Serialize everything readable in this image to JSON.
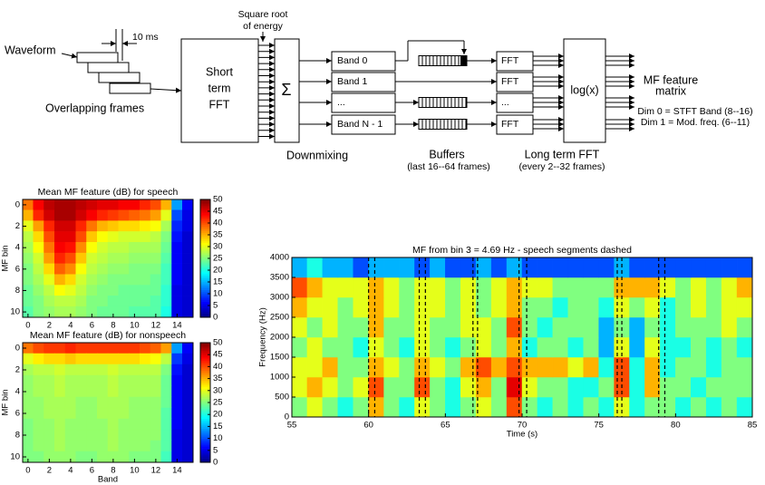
{
  "diagram": {
    "waveform": "Waveform",
    "frame_shift": "10 ms",
    "frames": "Overlapping frames",
    "stft": [
      "Short",
      "term",
      "FFT"
    ],
    "energy": [
      "Square root",
      "of energy"
    ],
    "sum": "Σ",
    "downmixing": "Downmixing",
    "bands": [
      "Band 0",
      "Band 1",
      "...",
      "Band N - 1"
    ],
    "buffers": "Buffers",
    "buffers_note": "(last 16--64 frames)",
    "fft": [
      "FFT",
      "FFT",
      "...",
      "FFT"
    ],
    "long_term_fft": "Long term FFT",
    "long_term_note": "(every 2--32 frames)",
    "log": "log(x)",
    "output": [
      "MF feature",
      "matrix"
    ],
    "dims": [
      "Dim 0 = STFT Band (8--16)",
      "Dim 1 = Mod. freq. (6--11)"
    ]
  },
  "chart_data": [
    {
      "type": "heatmap",
      "title": "Mean MF feature (dB) for speech",
      "y_label": "MF bin",
      "colormap": "jet",
      "x": [
        0,
        1,
        2,
        3,
        4,
        5,
        6,
        7,
        8,
        9,
        10,
        11,
        12,
        13,
        14,
        15
      ],
      "y": [
        0,
        1,
        2,
        3,
        4,
        5,
        6,
        7,
        8,
        9,
        10
      ],
      "xlim": [
        -0.5,
        15.5
      ],
      "ylim": [
        -0.5,
        10.5
      ],
      "y_inverted": true,
      "xticks": [
        0,
        2,
        4,
        6,
        8,
        10,
        12,
        14
      ],
      "yticks": [
        0,
        2,
        4,
        6,
        8,
        10
      ],
      "zlim": [
        0,
        50
      ],
      "colorbar_ticks": [
        0,
        5,
        10,
        15,
        20,
        25,
        30,
        35,
        40,
        45,
        50
      ],
      "values": [
        [
          38,
          44,
          47,
          48,
          48,
          47,
          46,
          45,
          45,
          44,
          44,
          42,
          40,
          35,
          14,
          6
        ],
        [
          35,
          42,
          46,
          48,
          48,
          46,
          44,
          42,
          41,
          40,
          39,
          38,
          36,
          30,
          10,
          5
        ],
        [
          30,
          36,
          42,
          46,
          46,
          42,
          38,
          35,
          34,
          33,
          33,
          32,
          31,
          27,
          8,
          5
        ],
        [
          28,
          33,
          40,
          45,
          45,
          40,
          34,
          31,
          30,
          29,
          29,
          29,
          28,
          25,
          7,
          4
        ],
        [
          27,
          31,
          38,
          44,
          43,
          37,
          31,
          29,
          28,
          28,
          27,
          27,
          27,
          24,
          6,
          4
        ],
        [
          26,
          29,
          36,
          42,
          40,
          34,
          29,
          28,
          27,
          27,
          26,
          26,
          26,
          23,
          6,
          4
        ],
        [
          25,
          28,
          33,
          39,
          37,
          31,
          28,
          27,
          26,
          26,
          25,
          25,
          25,
          22,
          6,
          4
        ],
        [
          25,
          27,
          30,
          35,
          33,
          29,
          27,
          26,
          25,
          25,
          25,
          25,
          24,
          22,
          6,
          4
        ],
        [
          24,
          26,
          28,
          31,
          30,
          28,
          26,
          25,
          25,
          24,
          24,
          24,
          24,
          21,
          5,
          4
        ],
        [
          24,
          25,
          27,
          28,
          28,
          27,
          25,
          25,
          24,
          24,
          24,
          24,
          23,
          21,
          5,
          4
        ],
        [
          23,
          25,
          26,
          27,
          27,
          26,
          25,
          24,
          24,
          24,
          23,
          23,
          23,
          20,
          5,
          4
        ]
      ]
    },
    {
      "type": "heatmap",
      "title": "Mean MF feature (dB) for nonspeech",
      "x_label": "Band",
      "y_label": "MF bin",
      "colormap": "jet",
      "x": [
        0,
        1,
        2,
        3,
        4,
        5,
        6,
        7,
        8,
        9,
        10,
        11,
        12,
        13,
        14,
        15
      ],
      "y": [
        0,
        1,
        2,
        3,
        4,
        5,
        6,
        7,
        8,
        9,
        10
      ],
      "xlim": [
        -0.5,
        15.5
      ],
      "ylim": [
        -0.5,
        10.5
      ],
      "y_inverted": true,
      "xticks": [
        0,
        2,
        4,
        6,
        8,
        10,
        12,
        14
      ],
      "yticks": [
        0,
        2,
        4,
        6,
        8,
        10
      ],
      "zlim": [
        0,
        50
      ],
      "colorbar_ticks": [
        0,
        5,
        10,
        15,
        20,
        25,
        30,
        35,
        40,
        45,
        50
      ],
      "values": [
        [
          38,
          40,
          41,
          41,
          42,
          41,
          41,
          41,
          41,
          41,
          41,
          40,
          39,
          36,
          14,
          6
        ],
        [
          30,
          32,
          33,
          33,
          34,
          33,
          33,
          33,
          33,
          33,
          33,
          32,
          31,
          28,
          9,
          5
        ],
        [
          27,
          28,
          28,
          29,
          28,
          28,
          28,
          28,
          29,
          28,
          28,
          28,
          28,
          25,
          7,
          4
        ],
        [
          26,
          27,
          27,
          28,
          27,
          27,
          27,
          27,
          28,
          27,
          27,
          27,
          27,
          24,
          6,
          4
        ],
        [
          26,
          27,
          27,
          28,
          27,
          27,
          27,
          27,
          28,
          27,
          27,
          27,
          27,
          24,
          6,
          4
        ],
        [
          26,
          26,
          27,
          27,
          27,
          26,
          26,
          27,
          27,
          27,
          26,
          26,
          26,
          24,
          6,
          4
        ],
        [
          26,
          26,
          27,
          27,
          27,
          26,
          26,
          27,
          27,
          27,
          26,
          26,
          26,
          23,
          6,
          4
        ],
        [
          25,
          26,
          26,
          27,
          26,
          26,
          26,
          26,
          27,
          26,
          26,
          26,
          26,
          23,
          6,
          4
        ],
        [
          25,
          26,
          26,
          27,
          26,
          26,
          26,
          26,
          27,
          26,
          26,
          26,
          26,
          23,
          5,
          4
        ],
        [
          25,
          26,
          26,
          27,
          26,
          26,
          26,
          26,
          27,
          26,
          26,
          26,
          25,
          23,
          5,
          4
        ],
        [
          25,
          25,
          26,
          26,
          26,
          25,
          25,
          26,
          26,
          26,
          25,
          25,
          25,
          22,
          5,
          4
        ]
      ]
    },
    {
      "type": "heatmap",
      "title": "MF from bin 3 = 4.69 Hz - speech segments dashed",
      "x_label": "Time (s)",
      "y_label": "Frequency (Hz)",
      "colormap": "jet",
      "x": [
        55.5,
        56.5,
        57.5,
        58.5,
        59.5,
        60.5,
        61.5,
        62.5,
        63.5,
        64.5,
        65.5,
        66.5,
        67.5,
        68.5,
        69.5,
        70.5,
        71.5,
        72.5,
        73.5,
        74.5,
        75.5,
        76.5,
        77.5,
        78.5,
        79.5,
        80.5,
        81.5,
        82.5,
        83.5,
        84.5
      ],
      "y": [
        250,
        750,
        1250,
        1750,
        2250,
        2750,
        3250,
        3750
      ],
      "xlim": [
        55,
        85
      ],
      "ylim": [
        0,
        4000
      ],
      "xticks": [
        55,
        60,
        65,
        70,
        75,
        80,
        85
      ],
      "yticks": [
        0,
        500,
        1000,
        1500,
        2000,
        2500,
        3000,
        3500,
        4000
      ],
      "zlim": [
        0,
        10
      ],
      "segments": [
        [
          60.0,
          60.4
        ],
        [
          63.3,
          63.7
        ],
        [
          66.8,
          67.1
        ],
        [
          69.8,
          70.3
        ],
        [
          76.2,
          76.5
        ],
        [
          78.9,
          79.3
        ]
      ],
      "values": [
        [
          5,
          6,
          5,
          4,
          5,
          7,
          5,
          4,
          6,
          5,
          4,
          5,
          6,
          5,
          8,
          5,
          4,
          5,
          4,
          5,
          4,
          6,
          4,
          5,
          5,
          4,
          5,
          4,
          5,
          4
        ],
        [
          6,
          7,
          6,
          5,
          6,
          8,
          5,
          5,
          8,
          5,
          4,
          6,
          7,
          5,
          9,
          6,
          5,
          5,
          4,
          4,
          5,
          8,
          4,
          7,
          5,
          5,
          4,
          5,
          5,
          5
        ],
        [
          6,
          6,
          7,
          5,
          5,
          7,
          6,
          5,
          7,
          6,
          5,
          7,
          8,
          7,
          8,
          7,
          7,
          7,
          6,
          7,
          4,
          8,
          4,
          7,
          4,
          5,
          5,
          4,
          5,
          5
        ],
        [
          5,
          6,
          5,
          5,
          4,
          6,
          5,
          4,
          6,
          5,
          4,
          5,
          6,
          5,
          7,
          4,
          5,
          5,
          4,
          5,
          3,
          6,
          3,
          6,
          4,
          4,
          5,
          4,
          5,
          4
        ],
        [
          6,
          5,
          6,
          5,
          5,
          7,
          5,
          5,
          6,
          5,
          5,
          6,
          6,
          5,
          8,
          5,
          4,
          5,
          5,
          5,
          3,
          5,
          3,
          5,
          4,
          5,
          5,
          5,
          6,
          5
        ],
        [
          7,
          6,
          6,
          5,
          6,
          7,
          6,
          5,
          6,
          6,
          5,
          6,
          5,
          6,
          7,
          5,
          5,
          4,
          5,
          5,
          4,
          6,
          5,
          6,
          4,
          5,
          6,
          5,
          6,
          6
        ],
        [
          8,
          7,
          6,
          6,
          6,
          7,
          6,
          5,
          6,
          6,
          5,
          6,
          5,
          6,
          7,
          6,
          6,
          5,
          5,
          5,
          5,
          7,
          7,
          7,
          6,
          5,
          6,
          5,
          6,
          7
        ],
        [
          3,
          4,
          3,
          3,
          2,
          3,
          3,
          3,
          2,
          3,
          2,
          2,
          3,
          2,
          3,
          2,
          2,
          2,
          2,
          2,
          2,
          3,
          2,
          2,
          2,
          2,
          2,
          2,
          2,
          2
        ]
      ]
    }
  ]
}
